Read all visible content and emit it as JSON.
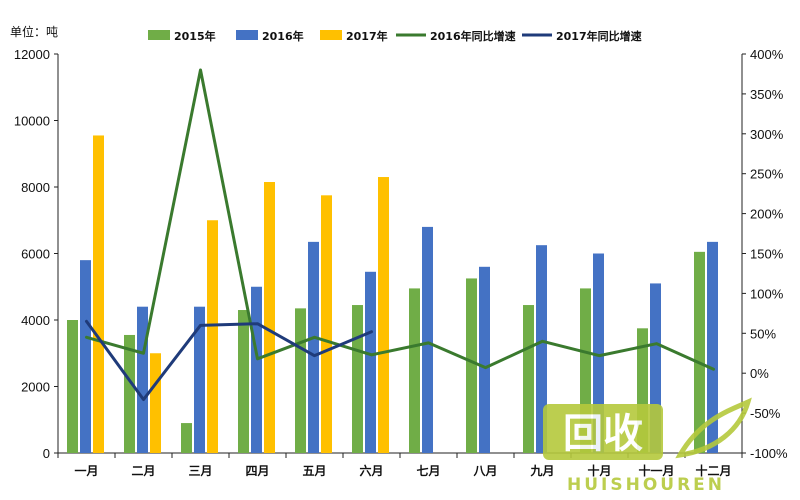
{
  "chart_data": {
    "type": "bar",
    "unit_label": "单位：吨",
    "categories": [
      "一月",
      "二月",
      "三月",
      "四月",
      "五月",
      "六月",
      "七月",
      "八月",
      "九月",
      "十月",
      "十一月",
      "十二月"
    ],
    "series": [
      {
        "name": "2015年",
        "kind": "bar",
        "axis": "left",
        "color": "#70ad47",
        "values": [
          4000,
          3550,
          900,
          4300,
          4350,
          4450,
          4950,
          5250,
          4450,
          4950,
          3750,
          6050
        ]
      },
      {
        "name": "2016年",
        "kind": "bar",
        "axis": "left",
        "color": "#4472c4",
        "values": [
          5800,
          4400,
          4400,
          5000,
          6350,
          5450,
          6800,
          5600,
          6250,
          6000,
          5100,
          6350
        ]
      },
      {
        "name": "2017年",
        "kind": "bar",
        "axis": "left",
        "color": "#ffc000",
        "values": [
          9550,
          3000,
          7000,
          8150,
          7750,
          8300,
          null,
          null,
          null,
          null,
          null,
          null
        ]
      },
      {
        "name": "2016年同比增速",
        "kind": "line",
        "axis": "right",
        "color": "#3a7a2e",
        "values": [
          45,
          25,
          380,
          18,
          45,
          23,
          38,
          7,
          40,
          22,
          37,
          5
        ]
      },
      {
        "name": "2017年同比增速",
        "kind": "line",
        "axis": "right",
        "color": "#1f3b7a",
        "values": [
          65,
          -33,
          60,
          62,
          22,
          52,
          null,
          null,
          null,
          null,
          null,
          null
        ]
      }
    ],
    "y_left": {
      "min": 0,
      "max": 12000,
      "ticks": [
        "0",
        "2000",
        "4000",
        "6000",
        "8000",
        "10000",
        "12000"
      ]
    },
    "y_right": {
      "min": -100,
      "max": 400,
      "ticks": [
        "-100%",
        "-50%",
        "0%",
        "50%",
        "100%",
        "150%",
        "200%",
        "250%",
        "300%",
        "350%",
        "400%"
      ]
    },
    "legend_position": "top",
    "grid": false
  },
  "watermark": {
    "main": "回收",
    "sub": "HUISHOUREN"
  }
}
